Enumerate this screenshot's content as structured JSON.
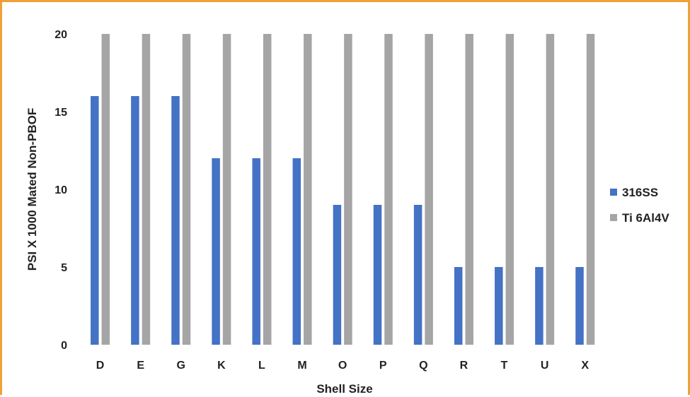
{
  "chart_data": {
    "type": "bar",
    "title": "",
    "xlabel": "Shell Size",
    "ylabel": "PSI X 1000 Mated Non-PBOF",
    "ylim": [
      0,
      20
    ],
    "yticks": [
      "0",
      "5",
      "10",
      "15",
      "20"
    ],
    "categories": [
      "D",
      "E",
      "G",
      "K",
      "L",
      "M",
      "O",
      "P",
      "Q",
      "R",
      "T",
      "U",
      "X"
    ],
    "series": [
      {
        "name": "316SS",
        "color": "#4472c4",
        "values": [
          16,
          16,
          16,
          12,
          12,
          12,
          9,
          9,
          9,
          5,
          5,
          5,
          5
        ]
      },
      {
        "name": "Ti 6Al4V",
        "color": "#a5a5a5",
        "values": [
          20,
          20,
          20,
          20,
          20,
          20,
          20,
          20,
          20,
          20,
          20,
          20,
          20
        ]
      }
    ],
    "grid": false,
    "legend": "right"
  }
}
